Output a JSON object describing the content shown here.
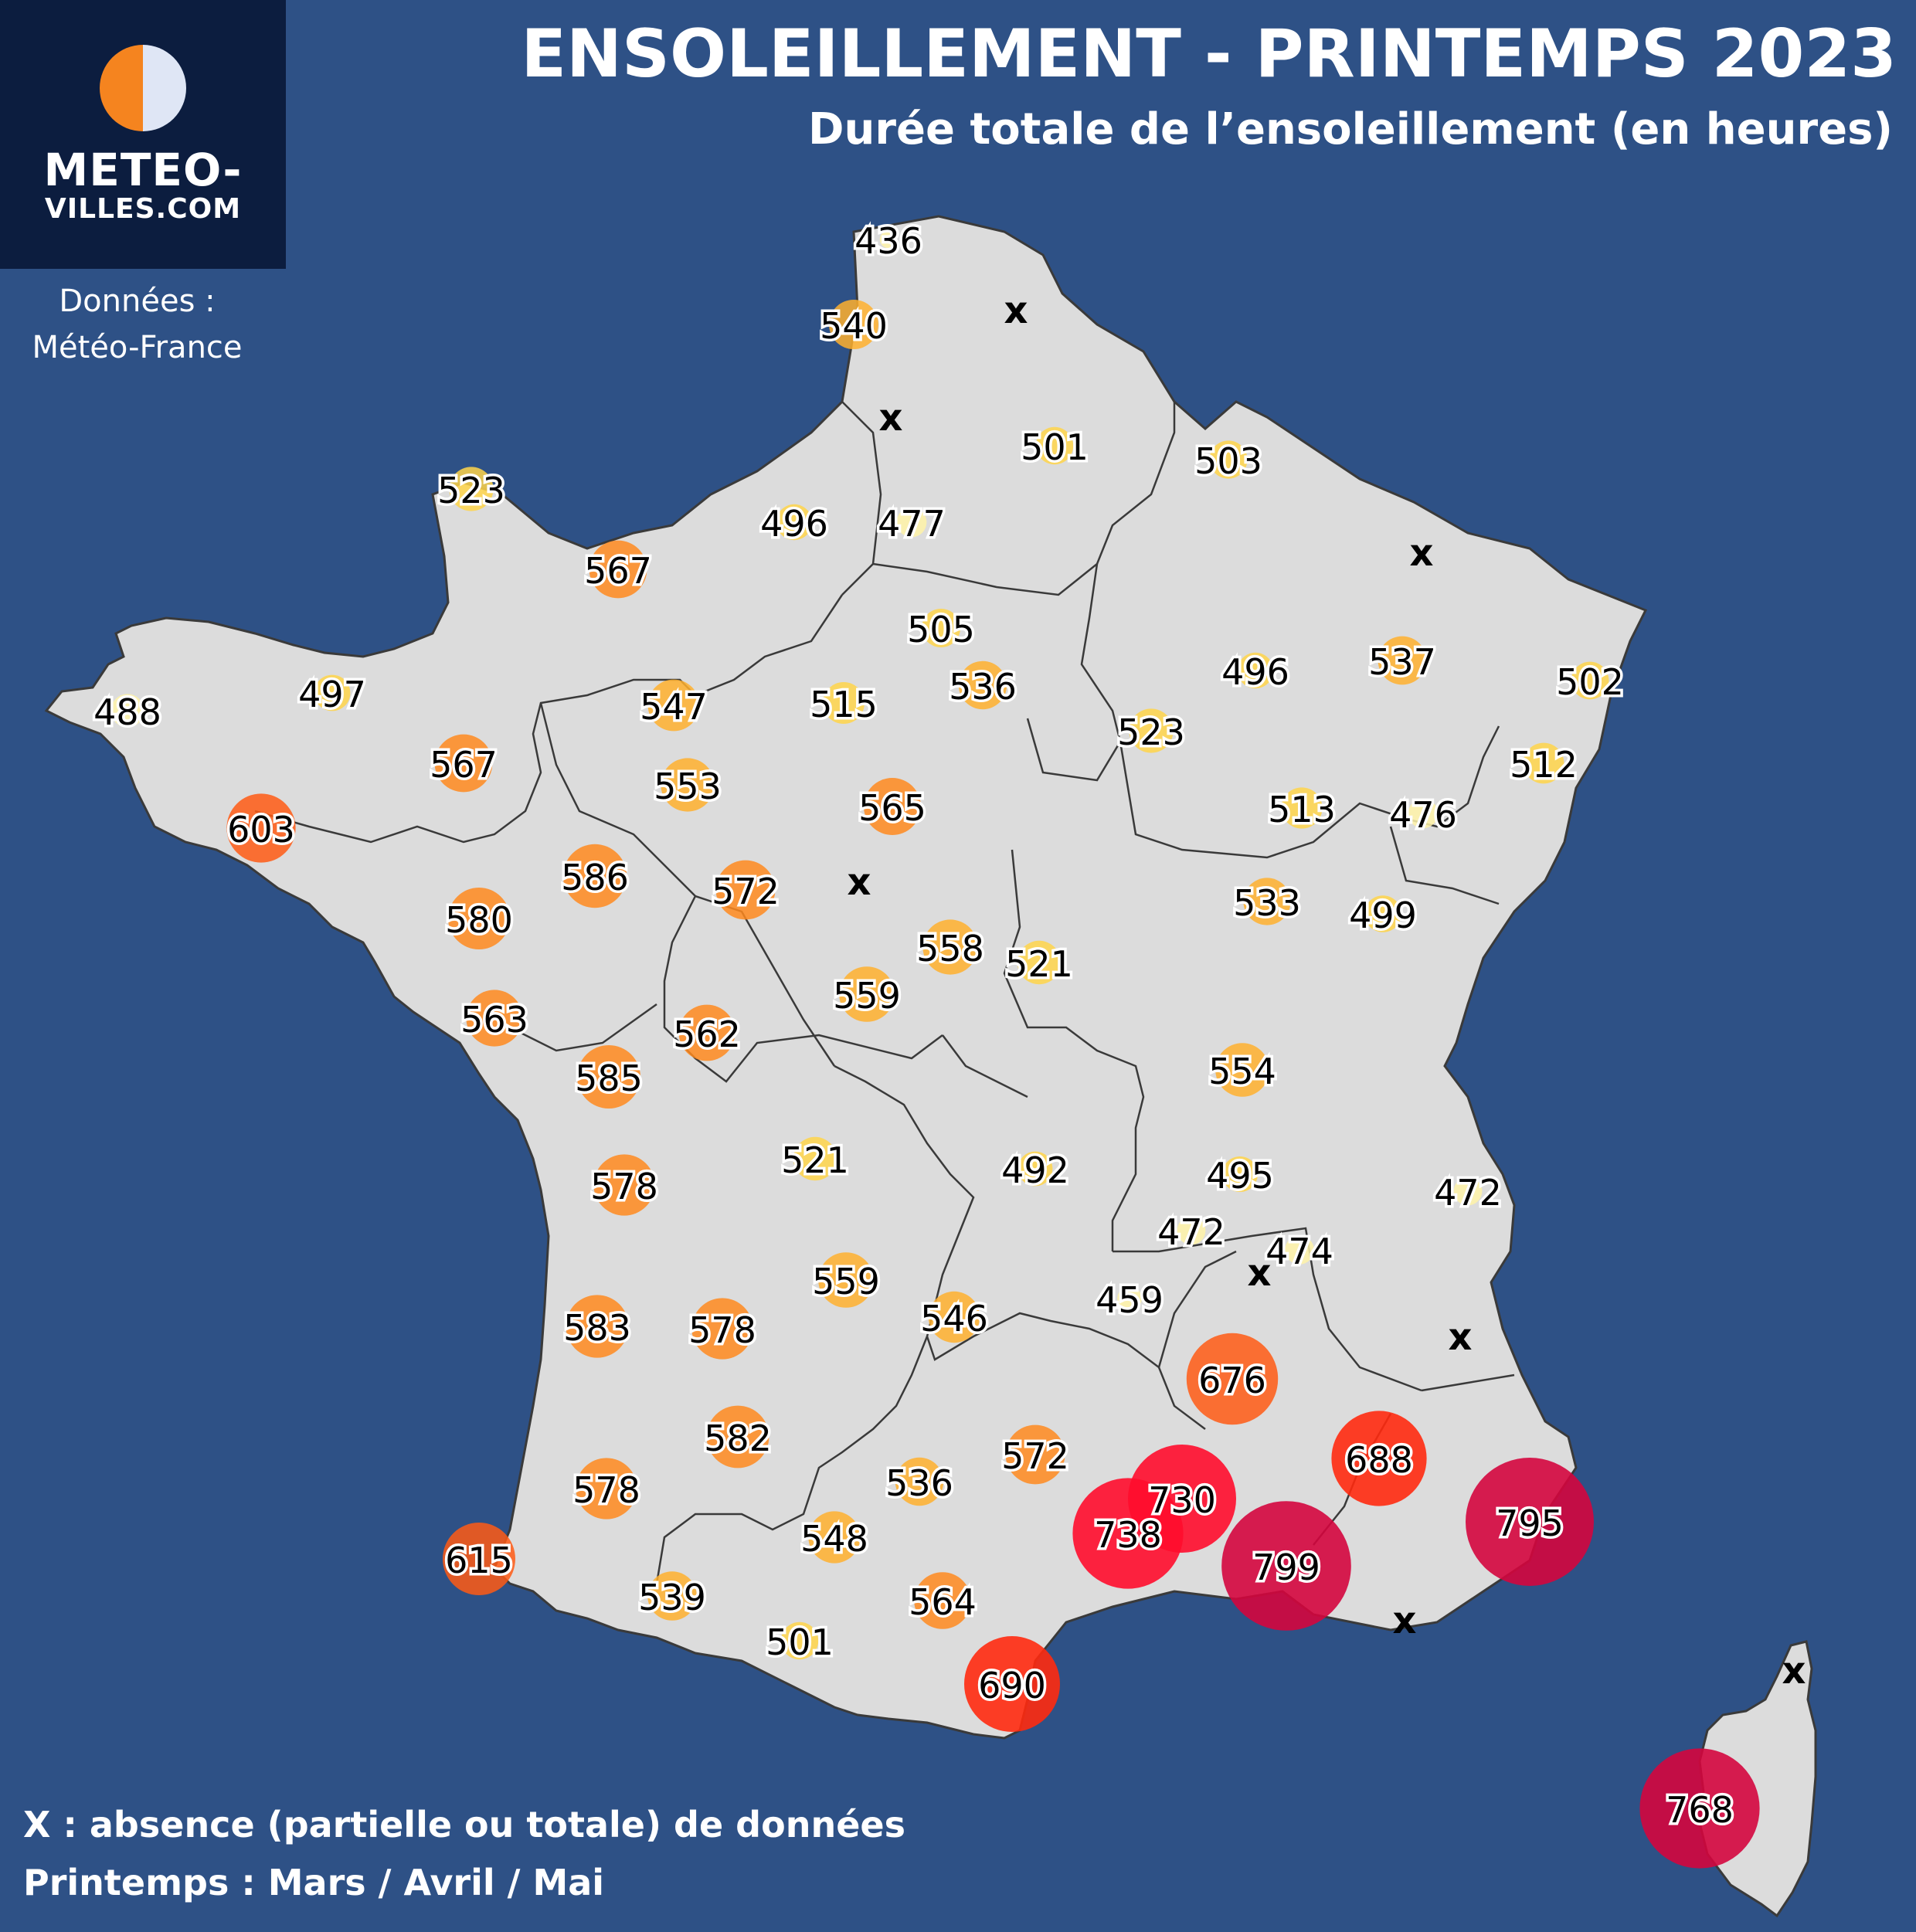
{
  "logo": {
    "line1": "METEO-",
    "line2": "VILLES.COM",
    "colors": {
      "sun": "#f5841f",
      "moon": "#dfe6f5"
    }
  },
  "source": {
    "line1": "Données :",
    "line2": "Météo-France"
  },
  "title": "ENSOLEILLEMENT - PRINTEMPS 2023",
  "subtitle": "Durée totale de l’ensoleillement (en heures)",
  "notes": {
    "missing": "X : absence (partielle ou totale) de données",
    "season": "Printemps : Mars / Avril / Mai"
  },
  "colors": {
    "background": "#2e5186",
    "land": "#dcdcdc",
    "border": "#3a3a3a",
    "scale": [
      "#fff3a8",
      "#ffd54a",
      "#ffb02e",
      "#ff8a1e",
      "#ff5a14",
      "#ff2a10",
      "#ff0c2c",
      "#d4063e"
    ]
  },
  "station_values": [
    436,
    540,
    501,
    503,
    523,
    496,
    477,
    567,
    505,
    537,
    496,
    502,
    488,
    497,
    547,
    515,
    536,
    523,
    567,
    553,
    512,
    565,
    513,
    476,
    603,
    586,
    572,
    580,
    533,
    499,
    558,
    521,
    559,
    563,
    562,
    554,
    585,
    521,
    492,
    495,
    472,
    578,
    472,
    474,
    559,
    459,
    546,
    583,
    578,
    676,
    582,
    572,
    688,
    536,
    578,
    730,
    738,
    548,
    795,
    799,
    615,
    539,
    564,
    501,
    690,
    768
  ],
  "missing_marker": "x",
  "missing_count": 8
}
